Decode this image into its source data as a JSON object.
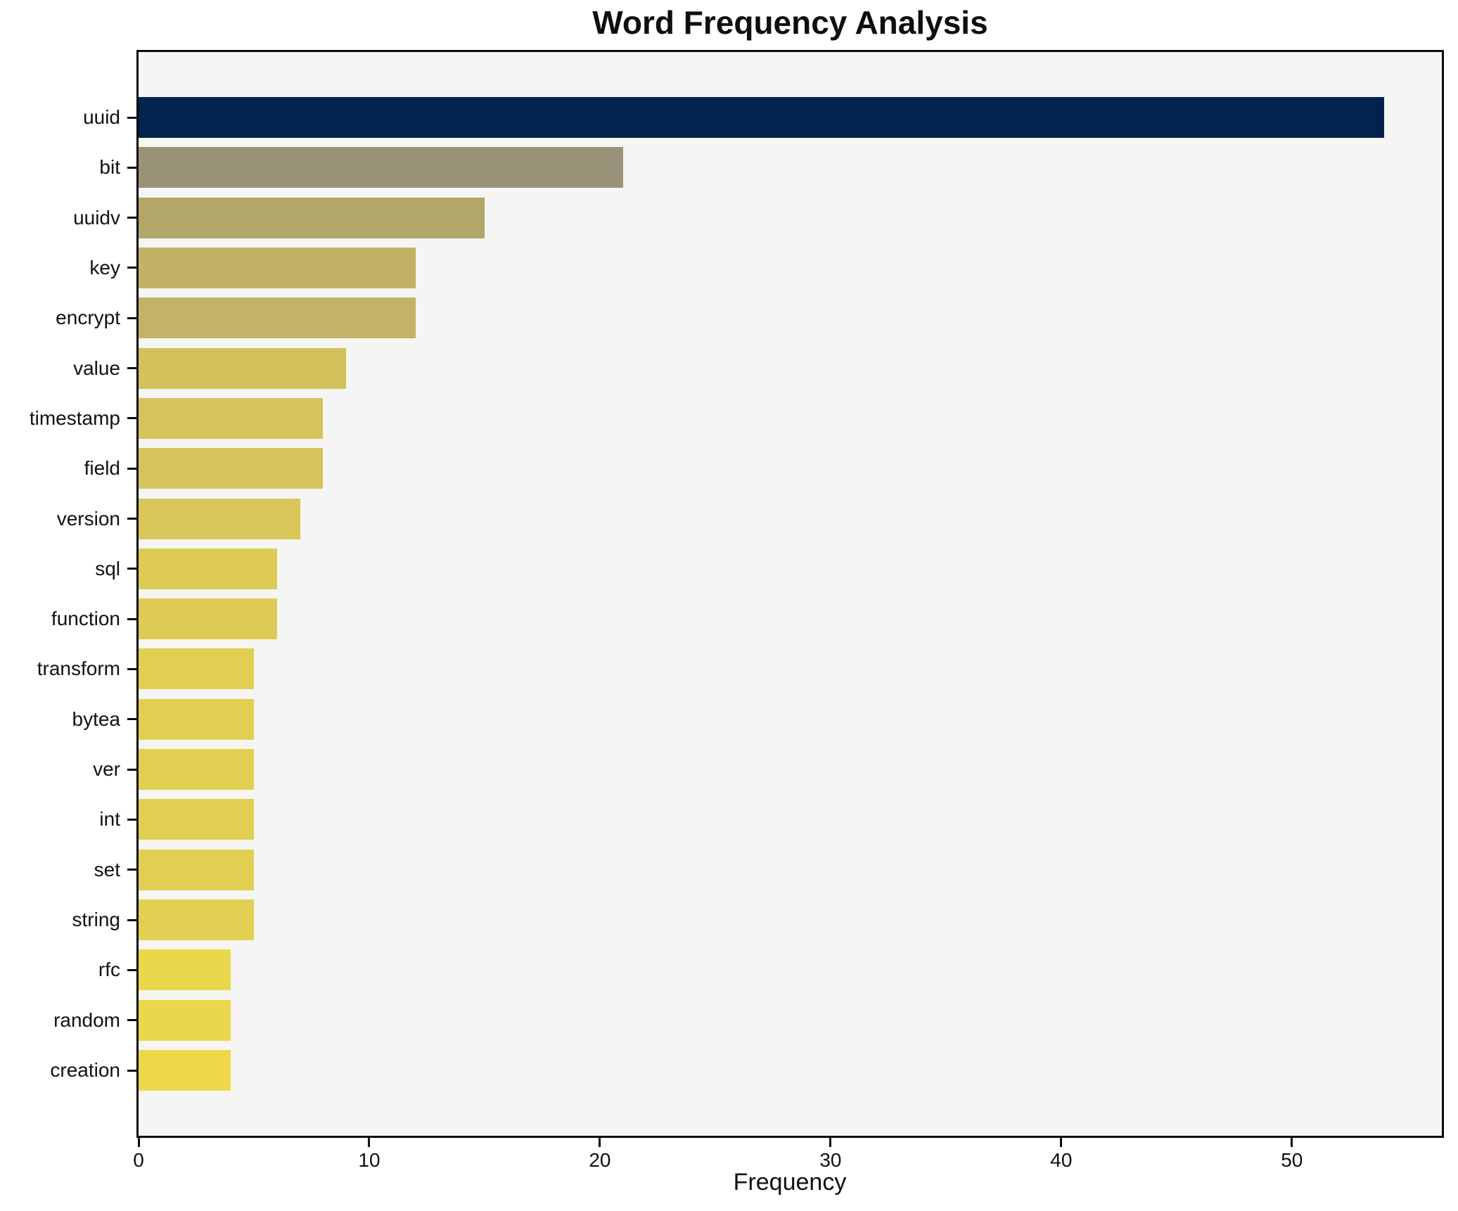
{
  "title": "Word Frequency Analysis",
  "chart_data": {
    "type": "bar",
    "orientation": "horizontal",
    "title": "Word Frequency Analysis",
    "xlabel": "Frequency",
    "ylabel": "",
    "categories": [
      "uuid",
      "bit",
      "uuidv",
      "key",
      "encrypt",
      "value",
      "timestamp",
      "field",
      "version",
      "sql",
      "function",
      "transform",
      "bytea",
      "ver",
      "int",
      "set",
      "string",
      "rfc",
      "random",
      "creation"
    ],
    "values": [
      54,
      21,
      15,
      12,
      12,
      9,
      8,
      8,
      7,
      6,
      6,
      5,
      5,
      5,
      5,
      5,
      5,
      4,
      4,
      4
    ],
    "bar_colors": [
      "#02234E",
      "#999278",
      "#B2A768",
      "#C2B266",
      "#C3B367",
      "#D3C15C",
      "#D5C45E",
      "#D6C55F",
      "#D9C75B",
      "#DDCB55",
      "#DDCB55",
      "#E1CF52",
      "#E1CF52",
      "#E1CF52",
      "#E1CF52",
      "#E1CF52",
      "#E2D052",
      "#EBD74B",
      "#EBD74B",
      "#ECD84A"
    ],
    "xlim": [
      0,
      56.5
    ],
    "xticks": [
      0,
      10,
      20,
      30,
      40,
      50
    ],
    "grid": false,
    "legend_position": "none",
    "plot_background": "#F5F5F3",
    "figure_background": "#FFFFFF",
    "frame_color": "#0C0C0C"
  }
}
